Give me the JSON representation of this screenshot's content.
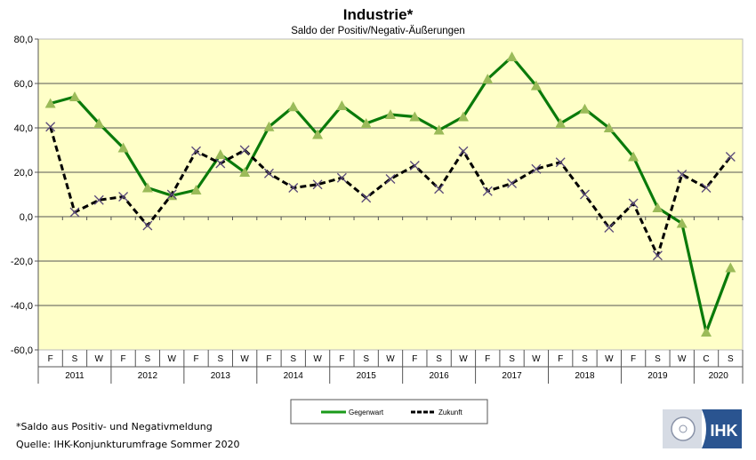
{
  "chart_data": {
    "type": "line",
    "title": "Industrie*",
    "subtitle": "Saldo der Positiv/Negativ-Äußerungen",
    "ylim": [
      -60,
      80
    ],
    "yticks": [
      "80,0",
      "60,0",
      "40,0",
      "20,0",
      "0,0",
      "-20,0",
      "-40,0",
      "-60,0"
    ],
    "ytick_values": [
      80,
      60,
      40,
      20,
      0,
      -20,
      -40,
      -60
    ],
    "categories": [
      "F",
      "S",
      "W",
      "F",
      "S",
      "W",
      "F",
      "S",
      "W",
      "F",
      "S",
      "W",
      "F",
      "S",
      "W",
      "F",
      "S",
      "W",
      "F",
      "S",
      "W",
      "F",
      "S",
      "W",
      "F",
      "S",
      "W",
      "C",
      "S"
    ],
    "years": [
      {
        "label": "2011",
        "count": 3
      },
      {
        "label": "2012",
        "count": 3
      },
      {
        "label": "2013",
        "count": 3
      },
      {
        "label": "2014",
        "count": 3
      },
      {
        "label": "2015",
        "count": 3
      },
      {
        "label": "2016",
        "count": 3
      },
      {
        "label": "2017",
        "count": 3
      },
      {
        "label": "2018",
        "count": 3
      },
      {
        "label": "2019",
        "count": 3
      },
      {
        "label": "2020",
        "count": 2
      }
    ],
    "grid": true,
    "legend_position": "bottom-center",
    "series": [
      {
        "name": "Gegenwart",
        "color": "#0a7a0a",
        "marker": "triangle",
        "marker_color": "#9bbb59",
        "values": [
          51,
          54,
          42,
          31,
          13,
          9.5,
          12,
          28,
          20,
          40.5,
          49.5,
          37,
          50,
          42,
          46,
          45,
          39,
          45,
          62,
          72,
          59,
          42,
          48.5,
          40,
          27,
          4,
          -3,
          -52,
          -23
        ]
      },
      {
        "name": "Zukunft",
        "color": "#000000",
        "marker": "x",
        "marker_color": "#5a4a7a",
        "values": [
          40.5,
          2,
          7.5,
          9,
          -4,
          10,
          29.5,
          24,
          30,
          19.5,
          13,
          14.5,
          17.5,
          8.5,
          17,
          23,
          12.5,
          29.5,
          11.5,
          15,
          21.5,
          24.5,
          10,
          -5,
          6,
          -17.5,
          19,
          13,
          27
        ]
      }
    ]
  },
  "footnote": "*Saldo aus Positiv- und Negativmeldung",
  "source": "Quelle: IHK-Konjunkturumfrage Sommer 2020",
  "logo_text": "IHK",
  "colors": {
    "plot_bg": "#ffffc8",
    "logo_blue": "#2a5490",
    "logo_grey": "#d6dbe4"
  }
}
